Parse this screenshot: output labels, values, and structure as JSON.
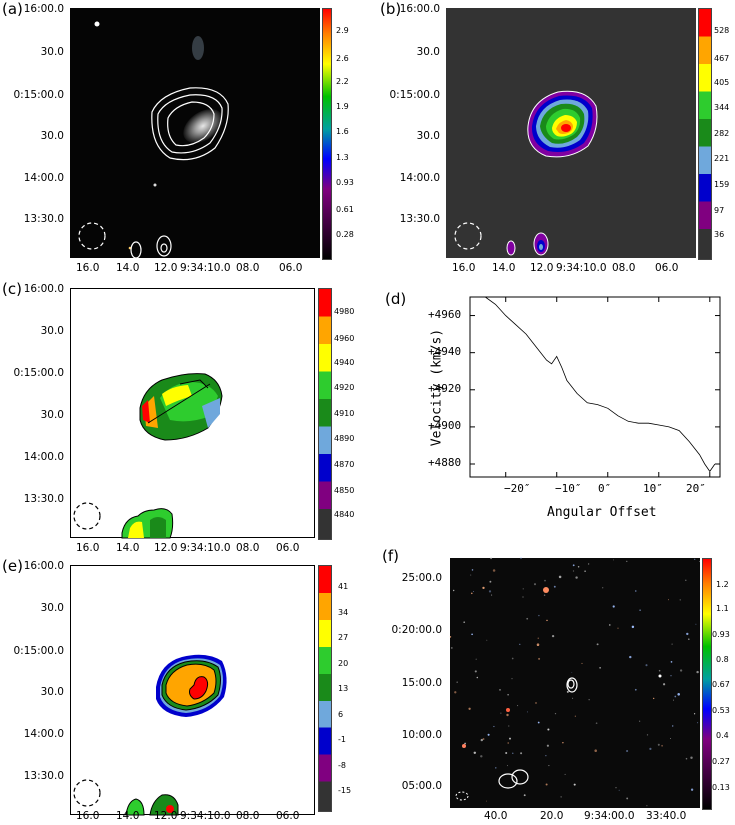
{
  "panels": {
    "a": {
      "label": "(a)",
      "y_ticks": [
        "16:00.0",
        "30.0",
        "0:15:00.0",
        "30.0",
        "14:00.0",
        "13:30.0"
      ],
      "x_ticks": [
        "16.0",
        "14.0",
        "12.0",
        "9:34:10.0",
        "08.0",
        "06.0"
      ],
      "colorbar_ticks": [
        "2.9",
        "2.6",
        "2.2",
        "1.9",
        "1.6",
        "1.3",
        "0.93",
        "0.61",
        "0.28"
      ]
    },
    "b": {
      "label": "(b)",
      "y_ticks": [
        "16:00.0",
        "30.0",
        "0:15:00.0",
        "30.0",
        "14:00.0",
        "13:30.0"
      ],
      "x_ticks": [
        "16.0",
        "14.0",
        "12.0",
        "9:34:10.0",
        "08.0",
        "06.0"
      ],
      "colorbar_ticks": [
        "528",
        "467",
        "405",
        "344",
        "282",
        "221",
        "159",
        "97",
        "36"
      ]
    },
    "c": {
      "label": "(c)",
      "y_ticks": [
        "16:00.0",
        "30.0",
        "0:15:00.0",
        "30.0",
        "14:00.0",
        "13:30.0"
      ],
      "x_ticks": [
        "16.0",
        "14.0",
        "12.0",
        "9:34:10.0",
        "08.0",
        "06.0"
      ],
      "colorbar_ticks": [
        "4980",
        "4960",
        "4940",
        "4920",
        "4910",
        "4890",
        "4870",
        "4850",
        "4840"
      ]
    },
    "d": {
      "label": "(d)",
      "xlabel": "Angular Offset",
      "ylabel": "Velocity (km/s)",
      "x_ticks": [
        "−20″",
        "−10″",
        "0″",
        "10″",
        "20″"
      ],
      "y_ticks": [
        "+4960",
        "+4940",
        "+4920",
        "+4900",
        "+4880"
      ]
    },
    "e": {
      "label": "(e)",
      "y_ticks": [
        "16:00.0",
        "30.0",
        "0:15:00.0",
        "30.0",
        "14:00.0",
        "13:30.0"
      ],
      "x_ticks": [
        "16.0",
        "14.0",
        "12.0",
        "9:34:10.0",
        "08.0",
        "06.0"
      ],
      "colorbar_ticks": [
        "41",
        "34",
        "27",
        "20",
        "13",
        "6",
        "-1",
        "-8",
        "-15"
      ]
    },
    "f": {
      "label": "(f)",
      "y_ticks": [
        "25:00.0",
        "0:20:00.0",
        "15:00.0",
        "10:00.0",
        "05:00.0"
      ],
      "x_ticks": [
        "40.0",
        "20.0",
        "9:34:00.0",
        "33:40.0"
      ],
      "colorbar_ticks": [
        "1.2",
        "1.1",
        "0.93",
        "0.8",
        "0.67",
        "0.53",
        "0.4",
        "0.27",
        "0.13"
      ]
    }
  },
  "colors": {
    "cb_a": [
      "#ff0000",
      "#ff8000",
      "#ffff00",
      "#00c000",
      "#00a0a0",
      "#0000ff",
      "#800080",
      "#000000"
    ],
    "cb_steps": [
      "#ff0000",
      "#ffa500",
      "#ffff00",
      "#2ecc2e",
      "#1a8a1a",
      "#6fa8dc",
      "#0000cc",
      "#800080",
      "#333333"
    ]
  },
  "chart_data": {
    "type": "line",
    "xlabel": "Angular Offset",
    "ylabel": "Velocity (km/s)",
    "xlim": [
      -27,
      22
    ],
    "ylim": [
      4873,
      4970
    ],
    "x_ticks": [
      -20,
      -10,
      0,
      10,
      20
    ],
    "y_ticks": [
      4960,
      4940,
      4920,
      4900,
      4880
    ],
    "x": [
      -24,
      -22,
      -20,
      -18,
      -16,
      -14,
      -12,
      -11,
      -10,
      -9,
      -8,
      -6,
      -4,
      -2,
      0,
      2,
      4,
      6,
      8,
      10,
      12,
      14,
      16,
      18,
      19,
      20,
      21
    ],
    "y": [
      4970,
      4966,
      4960,
      4955,
      4950,
      4943,
      4936,
      4934,
      4938,
      4932,
      4925,
      4918,
      4913,
      4912,
      4910,
      4906,
      4903,
      4902,
      4902,
      4901,
      4900,
      4898,
      4892,
      4885,
      4880,
      4876,
      4880
    ]
  }
}
